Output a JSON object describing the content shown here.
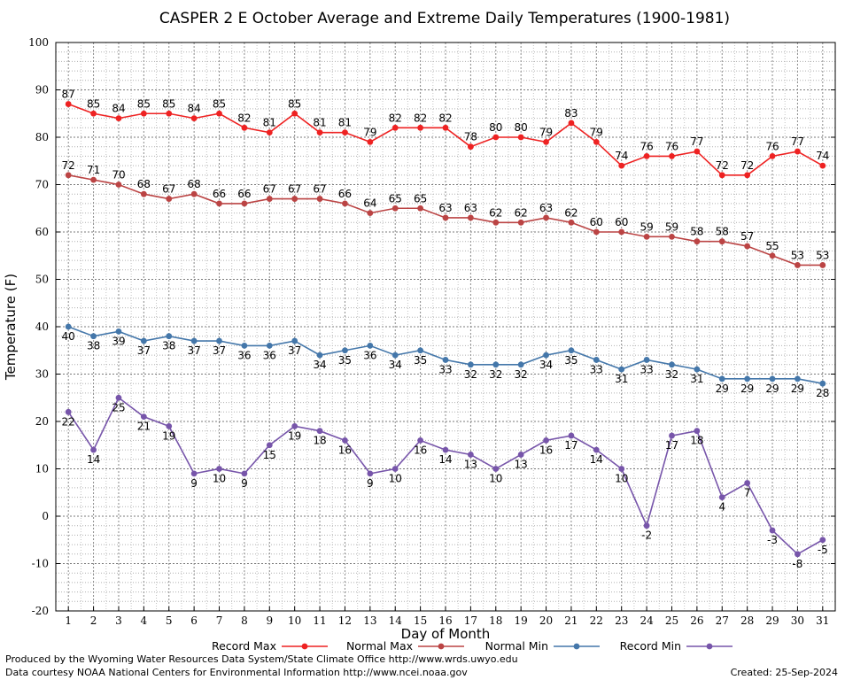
{
  "chart_data": {
    "type": "line",
    "title": "CASPER 2 E October Average and Extreme Daily Temperatures (1900-1981)",
    "xlabel": "Day of Month",
    "ylabel": "Temperature (F)",
    "ylim": [
      -20,
      100
    ],
    "yticks": [
      -20,
      -10,
      0,
      10,
      20,
      30,
      40,
      50,
      60,
      70,
      80,
      90,
      100
    ],
    "x": [
      1,
      2,
      3,
      4,
      5,
      6,
      7,
      8,
      9,
      10,
      11,
      12,
      13,
      14,
      15,
      16,
      17,
      18,
      19,
      20,
      21,
      22,
      23,
      24,
      25,
      26,
      27,
      28,
      29,
      30,
      31
    ],
    "grid": true,
    "legend_position": "bottom",
    "series": [
      {
        "name": "Record Max",
        "color": "#ee2222",
        "label_pos": "above",
        "values": [
          87,
          85,
          84,
          85,
          85,
          84,
          85,
          82,
          81,
          85,
          81,
          81,
          79,
          82,
          82,
          82,
          78,
          80,
          80,
          79,
          83,
          79,
          74,
          76,
          76,
          77,
          72,
          72,
          76,
          77,
          74
        ]
      },
      {
        "name": "Normal Max",
        "color": "#bb4444",
        "label_pos": "above",
        "values": [
          72,
          71,
          70,
          68,
          67,
          68,
          66,
          66,
          67,
          67,
          67,
          66,
          64,
          65,
          65,
          63,
          63,
          62,
          62,
          63,
          62,
          60,
          60,
          59,
          59,
          58,
          58,
          57,
          55,
          53,
          53
        ]
      },
      {
        "name": "Normal Min",
        "color": "#4477aa",
        "label_pos": "below",
        "values": [
          40,
          38,
          39,
          37,
          38,
          37,
          37,
          36,
          36,
          37,
          34,
          35,
          36,
          34,
          35,
          33,
          32,
          32,
          32,
          34,
          35,
          33,
          31,
          33,
          32,
          31,
          29,
          29,
          29,
          29,
          28
        ]
      },
      {
        "name": "Record Min",
        "color": "#7755aa",
        "label_pos": "below",
        "values": [
          22,
          14,
          25,
          21,
          19,
          9,
          10,
          9,
          15,
          19,
          18,
          16,
          9,
          10,
          16,
          14,
          13,
          10,
          13,
          16,
          17,
          14,
          10,
          -2,
          17,
          18,
          4,
          7,
          -3,
          -8,
          -5
        ]
      }
    ]
  },
  "footer": {
    "produced_by": "Produced by the Wyoming Water Resources Data System/State Climate Office http://www.wrds.uwyo.edu",
    "courtesy": "Data courtesy NOAA National Centers for Environmental Information http://www.ncei.noaa.gov",
    "created": "Created:  25-Sep-2024"
  }
}
